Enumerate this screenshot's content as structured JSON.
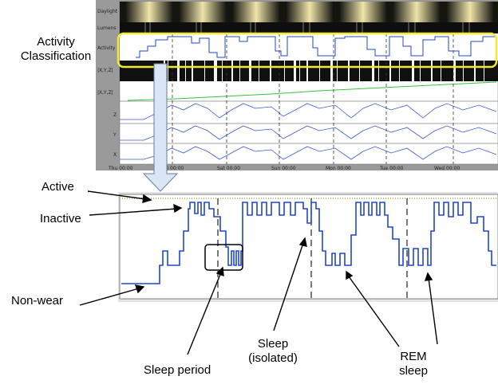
{
  "top_panel": {
    "row_labels": [
      "Daylight",
      "Lumens",
      "Activity",
      "|X,Y,Z|",
      "|X,Y,Z|",
      "Z",
      "Y",
      "X"
    ],
    "time_ticks": [
      "Thu 00:00",
      "Fri 00:00",
      "Sat 00:00",
      "Sun 00:00",
      "Mon 00:00",
      "Tue 00:00",
      "Wed 00:00"
    ],
    "colors": {
      "daylight_glow": "#e8d9a0",
      "activity_trace": "#1f45d6",
      "highlight_box": "#f2ea2a",
      "vector_line": "#35c23a",
      "axis_trace": "#3a5bd0"
    }
  },
  "annotations": {
    "activity_classification": [
      "Activity",
      "Classification"
    ],
    "active": "Active",
    "inactive": "Inactive",
    "non_wear": "Non-wear",
    "sleep_period": "Sleep period",
    "sleep_isolated": [
      "Sleep",
      "(isolated)"
    ],
    "rem_sleep": [
      "REM",
      "sleep"
    ]
  },
  "bottom_panel": {
    "trace_color": "#1f45d6",
    "levels": [
      "Active",
      "Inactive",
      "Sleep",
      "Non-wear"
    ]
  }
}
